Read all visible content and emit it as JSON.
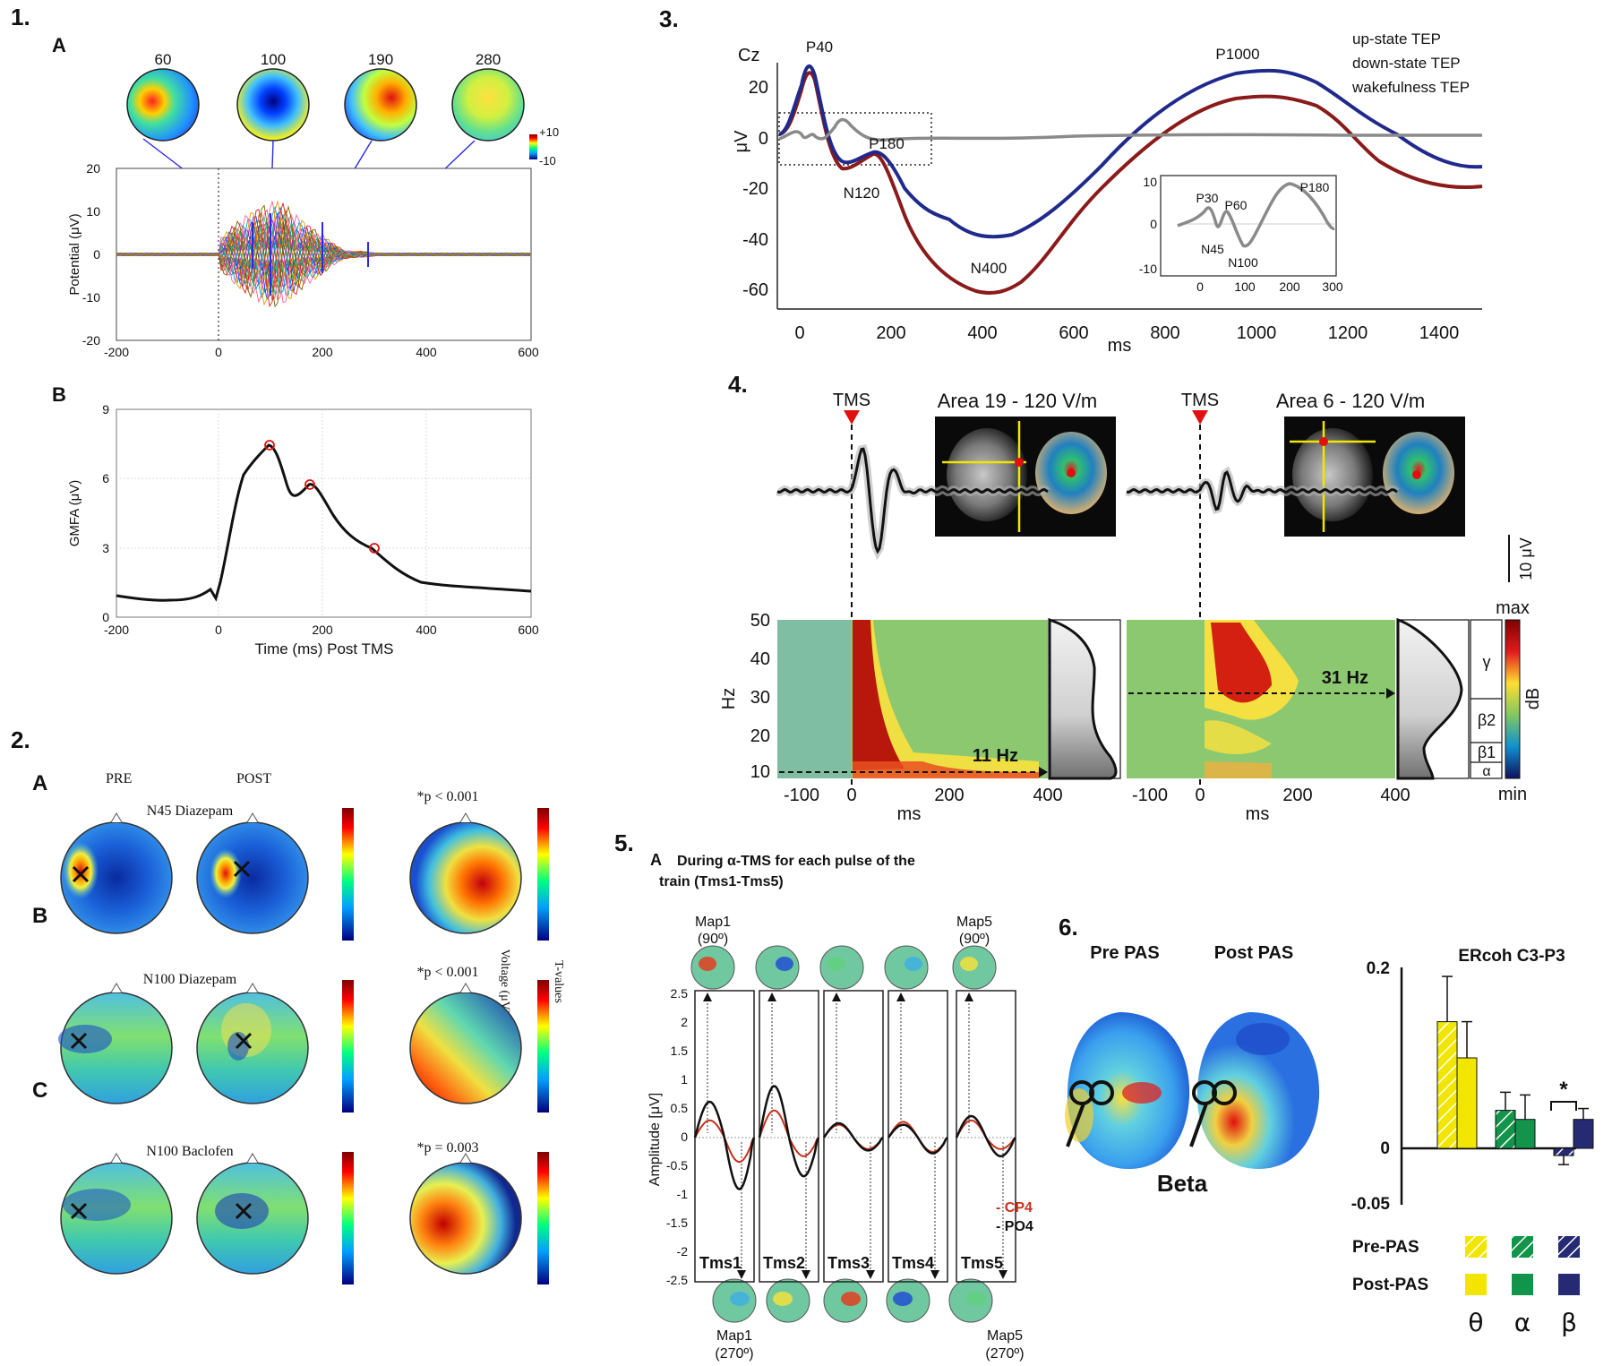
{
  "panel1": {
    "num": "1.",
    "A": {
      "letter": "A",
      "map_times": [
        "60",
        "100",
        "190",
        "280"
      ],
      "cbar_max": "+10",
      "cbar_min": "-10",
      "ylabel": "Potential (μV)",
      "y_ticks": [
        "20",
        "10",
        "0",
        "-10",
        "-20"
      ],
      "x_ticks": [
        "-200",
        "0",
        "200",
        "400",
        "600"
      ]
    },
    "B": {
      "letter": "B",
      "ylabel": "GMFA (μV)",
      "xlabel": "Time (ms) Post TMS",
      "y_ticks": [
        "9",
        "6",
        "3",
        "0"
      ],
      "x_ticks": [
        "-200",
        "0",
        "200",
        "400",
        "600"
      ]
    }
  },
  "panel2": {
    "num": "2.",
    "col_pre": "PRE",
    "col_post": "POST",
    "rows": [
      {
        "letter": "A",
        "title": "N45 Diazepam",
        "pval": "*p < 0.001"
      },
      {
        "letter": "B",
        "title": "N100 Diazepam",
        "pval": "*p < 0.001"
      },
      {
        "letter": "C",
        "title": "N100 Baclofen",
        "pval": "*p = 0.003"
      }
    ],
    "cbar_voltage_label": "Voltage (μV)",
    "cbar_t_label": "T-values"
  },
  "panel3": {
    "num": "3.",
    "electrode": "Cz",
    "ylabel": "μV",
    "xlabel": "ms",
    "y_ticks": [
      "20",
      "0",
      "-20",
      "-40",
      "-60"
    ],
    "x_ticks": [
      "0",
      "200",
      "400",
      "600",
      "800",
      "1000",
      "1200",
      "1400"
    ],
    "legend": [
      {
        "label": "up-state TEP",
        "color": "#8b1a1a"
      },
      {
        "label": "down-state TEP",
        "color": "#1f2a8c"
      },
      {
        "label": "wakefulness TEP",
        "color": "#8a8a8a"
      }
    ],
    "peaks": [
      "P40",
      "P180",
      "N120",
      "N400",
      "P1000"
    ],
    "inset": {
      "y_ticks": [
        "10",
        "0",
        "-10"
      ],
      "x_ticks": [
        "0",
        "100",
        "200",
        "300"
      ],
      "peaks": [
        "P30",
        "P60",
        "N45",
        "N100",
        "P180"
      ]
    }
  },
  "panel4": {
    "num": "4.",
    "left": {
      "tms": "TMS",
      "title": "Area 19 - 120 V/m",
      "freq": "11 Hz"
    },
    "right": {
      "tms": "TMS",
      "title": "Area 6 - 120 V/m",
      "freq": "31 Hz"
    },
    "ylabel": "Hz",
    "xlabel": "ms",
    "y_ticks": [
      "50",
      "40",
      "30",
      "20",
      "10"
    ],
    "x_ticks": [
      "-100",
      "0",
      "200",
      "400"
    ],
    "scale": "10 μV",
    "cbar_max": "max",
    "cbar_min": "min",
    "cbar_unit": "dB",
    "bands": [
      "γ",
      "β2",
      "β1",
      "α"
    ]
  },
  "panel5": {
    "num": "5.",
    "subtitle_letter": "A",
    "subtitle_line1": "During α-TMS for each pulse of the",
    "subtitle_line2": "train (Tms1-Tms5)",
    "map_top_left": "Map1",
    "map_top_left_deg": "(90º)",
    "map_top_right": "Map5",
    "map_top_right_deg": "(90º)",
    "map_bot_left": "Map1",
    "map_bot_left_deg": "(270º)",
    "map_bot_right": "Map5",
    "map_bot_right_deg": "(270º)",
    "ylabel": "Amplitude [μV]",
    "y_ticks": [
      "2.5",
      "2",
      "1.5",
      "1",
      "0.5",
      "0",
      "-0.5",
      "-1",
      "-1.5",
      "-2",
      "-2.5"
    ],
    "pulses": [
      "Tms1",
      "Tms2",
      "Tms3",
      "Tms4",
      "Tms5"
    ],
    "legend_cp4": "- CP4",
    "legend_po4": "- PO4"
  },
  "panel6": {
    "num": "6.",
    "pre": "Pre PAS",
    "post": "Post PAS",
    "band": "Beta"
  },
  "chart_data": {
    "type": "bar",
    "title": "ERcoh C3-P3",
    "categories": [
      "θ",
      "α",
      "β"
    ],
    "series": [
      {
        "name": "Pre-PAS",
        "values": [
          0.14,
          0.042,
          -0.008
        ],
        "errors": [
          0.05,
          0.02,
          0.01
        ]
      },
      {
        "name": "Post-PAS",
        "values": [
          0.1,
          0.032,
          0.032
        ],
        "errors": [
          0.04,
          0.027,
          0.012
        ]
      }
    ],
    "colors": [
      "#f2e600",
      "#12944a",
      "#252a73"
    ],
    "ylim": [
      -0.05,
      0.2
    ],
    "y_ticks": [
      "0.2",
      "0",
      "-0.05"
    ],
    "significance": "*",
    "legend_pre": "Pre-PAS",
    "legend_post": "Post-PAS"
  }
}
